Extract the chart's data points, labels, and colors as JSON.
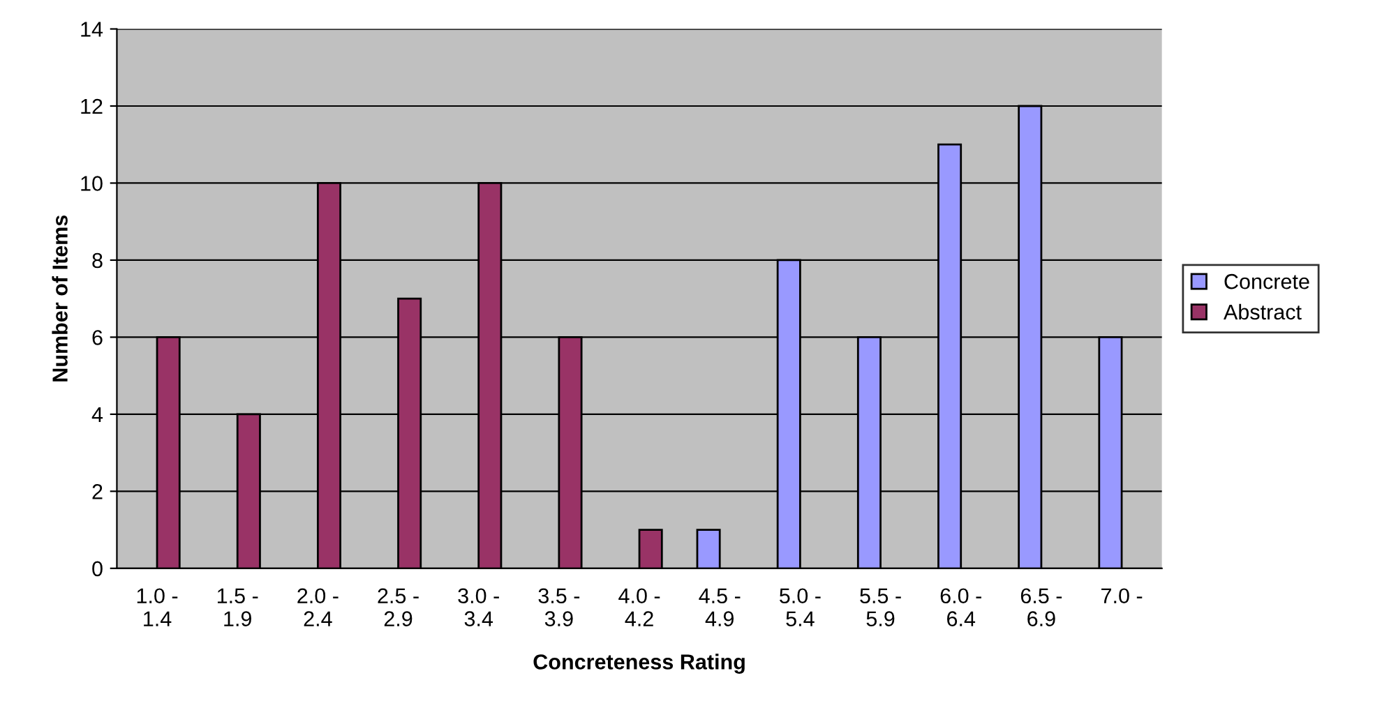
{
  "chart_data": {
    "type": "bar",
    "xlabel": "Concreteness Rating",
    "ylabel": "Number of Items",
    "categories": [
      "1.0 -\n1.4",
      "1.5 -\n1.9",
      "2.0 -\n2.4",
      "2.5 -\n2.9",
      "3.0 -\n3.4",
      "3.5 -\n3.9",
      "4.0 -\n4.2",
      "4.5 -\n4.9",
      "5.0 -\n5.4",
      "5.5 -\n5.9",
      "6.0 -\n6.4",
      "6.5 -\n6.9",
      "7.0 -"
    ],
    "series": [
      {
        "name": "Concrete",
        "color": "#9999ff",
        "values": [
          null,
          null,
          null,
          null,
          null,
          null,
          null,
          1,
          8,
          6,
          11,
          12,
          6
        ]
      },
      {
        "name": "Abstract",
        "color": "#993366",
        "values": [
          6,
          4,
          10,
          7,
          10,
          6,
          1,
          null,
          null,
          null,
          null,
          null,
          null
        ]
      }
    ],
    "ylim": [
      0,
      14
    ],
    "yticks": [
      0,
      2,
      4,
      6,
      8,
      10,
      12,
      14
    ],
    "grid": "y",
    "legend": "right"
  }
}
